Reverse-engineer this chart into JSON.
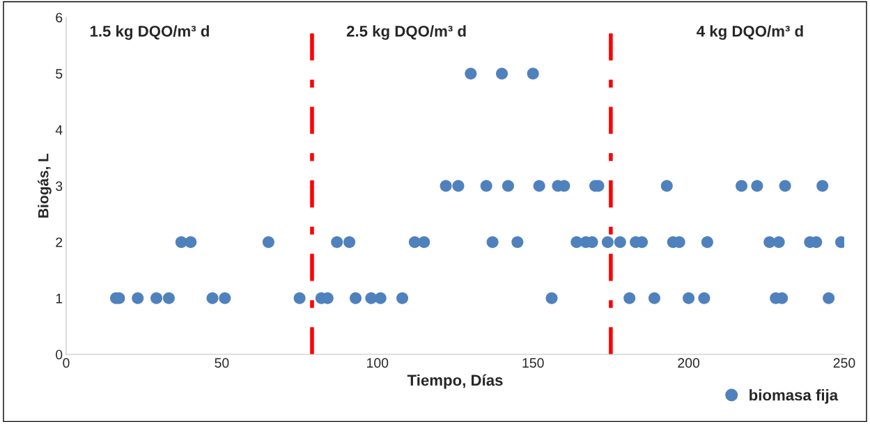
{
  "chart_data": {
    "type": "scatter",
    "xlabel": "Tiempo, Días",
    "ylabel": "Biogás, L",
    "series": [
      {
        "name": "biomasa fija",
        "color": "#4f81bd",
        "x": [
          16,
          17,
          23,
          29,
          33,
          47,
          51,
          75,
          82,
          84,
          93,
          98,
          101,
          108,
          156,
          181,
          189,
          200,
          205,
          228,
          230,
          245,
          37,
          40,
          65,
          87,
          91,
          112,
          115,
          137,
          145,
          164,
          167,
          169,
          174,
          178,
          183,
          185,
          195,
          197,
          206,
          226,
          229,
          239,
          241,
          249,
          122,
          126,
          135,
          142,
          152,
          158,
          160,
          170,
          171,
          193,
          217,
          222,
          231,
          243,
          130,
          140,
          150
        ],
        "values": [
          1,
          1,
          1,
          1,
          1,
          1,
          1,
          1,
          1,
          1,
          1,
          1,
          1,
          1,
          1,
          1,
          1,
          1,
          1,
          1,
          1,
          1,
          2,
          2,
          2,
          2,
          2,
          2,
          2,
          2,
          2,
          2,
          2,
          2,
          2,
          2,
          2,
          2,
          2,
          2,
          2,
          2,
          2,
          2,
          2,
          2,
          3,
          3,
          3,
          3,
          3,
          3,
          3,
          3,
          3,
          3,
          3,
          3,
          3,
          3,
          5,
          5,
          5
        ]
      }
    ],
    "xlim": [
      0,
      250
    ],
    "xticks": [
      0,
      50,
      100,
      150,
      200,
      250
    ],
    "ylim": [
      0,
      6
    ],
    "yticks": [
      0,
      1,
      2,
      3,
      4,
      5,
      6
    ],
    "ref_lines": [
      {
        "axis": "x",
        "value": 79,
        "color": "#ff0000",
        "line_style": "dashdot"
      },
      {
        "axis": "x",
        "value": 175,
        "color": "#ff0000",
        "line_style": "dashdot"
      }
    ],
    "annotations": [
      "1.5 kg DQO/m³ d",
      "2.5 kg DQO/m³ d",
      "4 kg DQO/m³ d"
    ],
    "marker": "circle",
    "grid": false,
    "legend": "bottom right"
  }
}
